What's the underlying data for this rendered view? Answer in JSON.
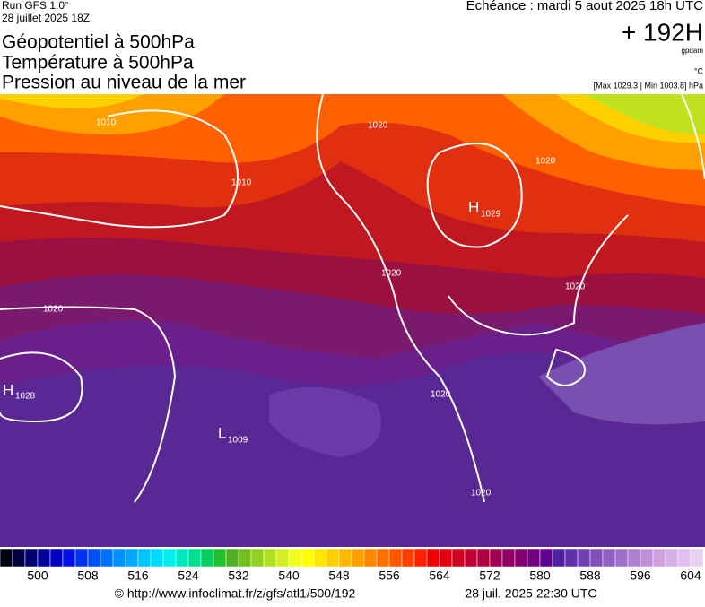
{
  "header": {
    "run": "Run GFS 1.0°",
    "run_date": "28 juillet 2025 18Z",
    "titles": [
      "Géopotentiel à 500hPa",
      "Température à 500hPa",
      "Pression au niveau de la mer"
    ],
    "echeance": "Echéance : mardi 5 aout 2025 18h UTC",
    "lead": "+ 192H",
    "unit_geo": "gpdam",
    "unit_temp": "°C",
    "pressure_range": "[Max 1029.3 | Min 1003.8] hPa"
  },
  "map": {
    "centers": [
      {
        "letter": "H",
        "value": "1029"
      },
      {
        "letter": "H",
        "value": "1028"
      },
      {
        "letter": "L",
        "value": "1009"
      }
    ],
    "isobar_labels": [
      "1010",
      "1010",
      "1020",
      "1020",
      "1020",
      "1020",
      "1020",
      "1020",
      "1020"
    ]
  },
  "colorbar": {
    "range": [
      494,
      606
    ],
    "ticks": [
      500,
      508,
      516,
      524,
      532,
      540,
      548,
      556,
      564,
      572,
      580,
      588,
      596,
      604
    ],
    "colors": [
      "#000010",
      "#000040",
      "#000070",
      "#00009a",
      "#0000c0",
      "#0010e0",
      "#0030f0",
      "#0050f8",
      "#0070ff",
      "#0090ff",
      "#00aaff",
      "#00c4ff",
      "#00dcff",
      "#00f0f0",
      "#00e8c0",
      "#00e090",
      "#00d060",
      "#20c030",
      "#50b020",
      "#70c020",
      "#90d020",
      "#b0e020",
      "#d0f020",
      "#f0ff20",
      "#ffff00",
      "#ffe800",
      "#ffd000",
      "#ffb800",
      "#ffa000",
      "#ff8800",
      "#ff7000",
      "#ff5800",
      "#ff4000",
      "#ff2000",
      "#f00000",
      "#e00010",
      "#d00020",
      "#c00030",
      "#b00040",
      "#a00050",
      "#900060",
      "#800070",
      "#700080",
      "#600090",
      "#5020a0",
      "#6030a8",
      "#7040b0",
      "#8050b8",
      "#9060c0",
      "#a070c8",
      "#b080d0",
      "#c090d8",
      "#d0a0e0",
      "#d8b0e8",
      "#e0c0f0",
      "#e8d0f4"
    ]
  },
  "footer": {
    "url": "© http://www.infoclimat.fr/z/gfs/atl1/500/192",
    "timestamp": "28 juil. 2025 22:30 UTC"
  }
}
